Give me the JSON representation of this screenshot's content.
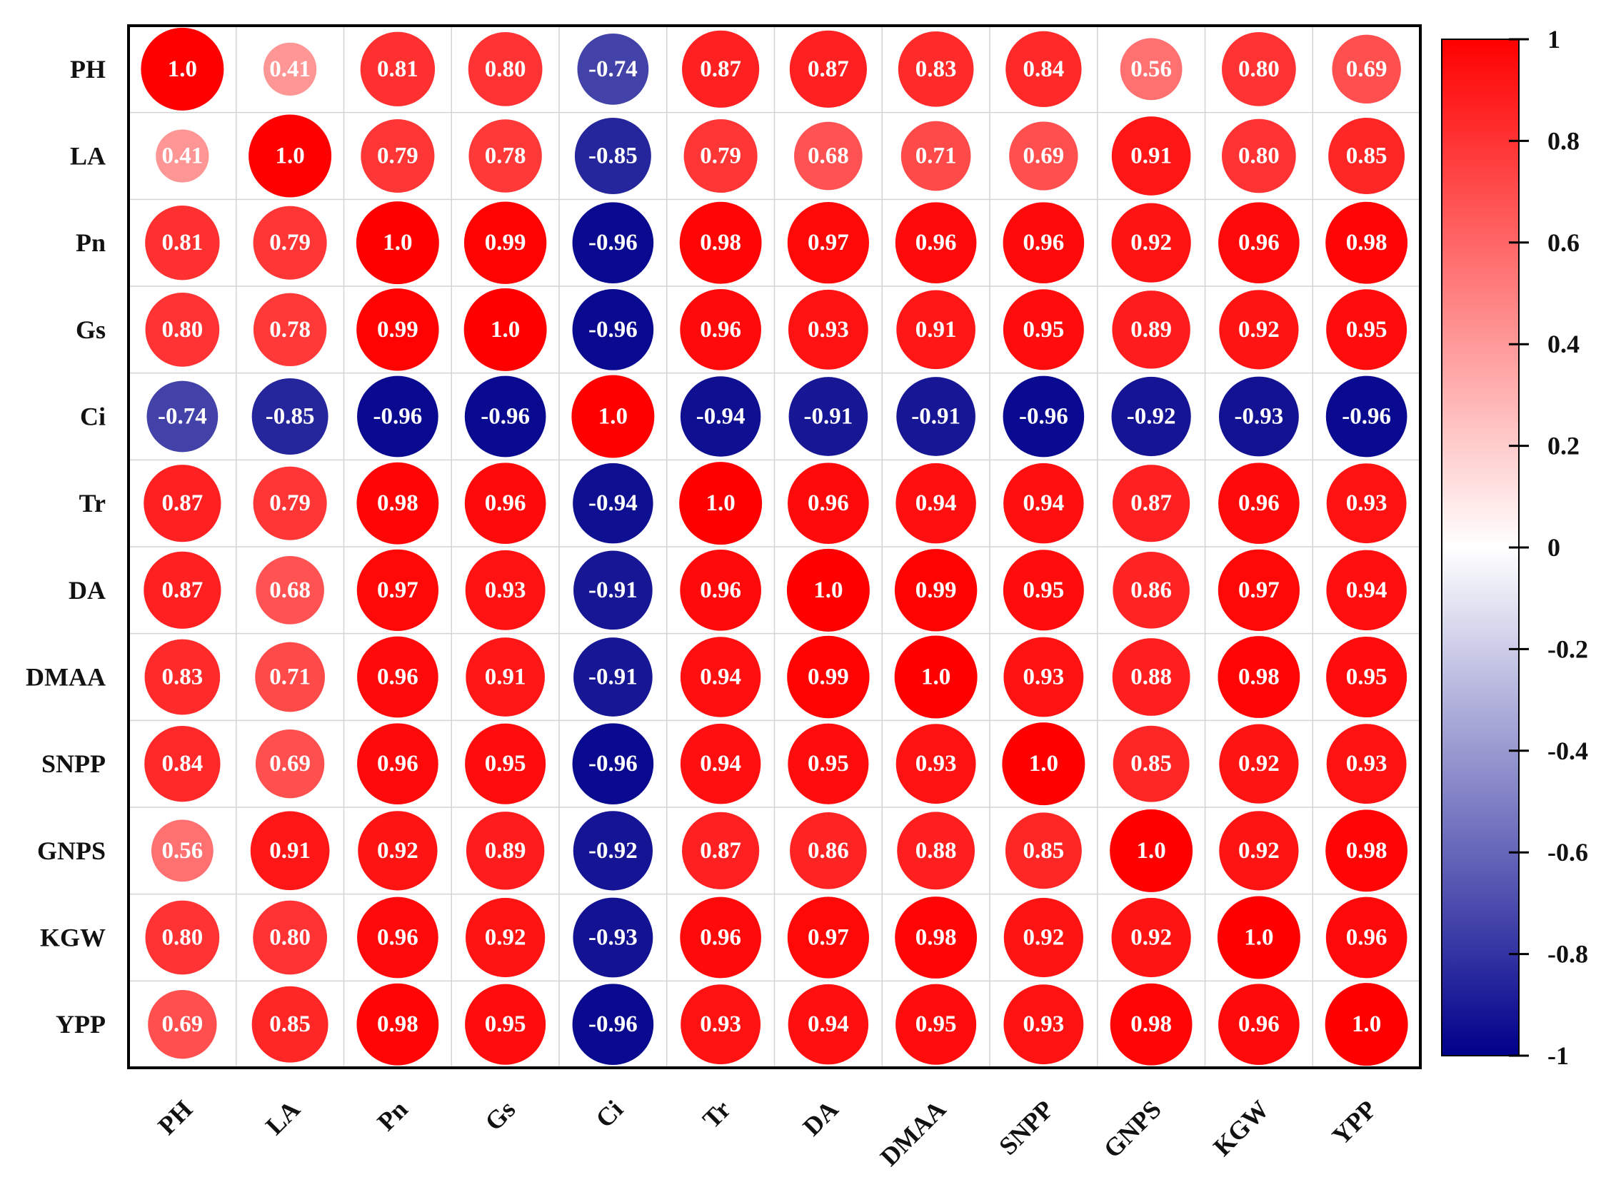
{
  "chart_data": {
    "type": "heatmap",
    "style": "circle-correlation-matrix",
    "title": "",
    "variables": [
      "PH",
      "LA",
      "Pn",
      "Gs",
      "Ci",
      "Tr",
      "DA",
      "DMAA",
      "SNPP",
      "GNPS",
      "KGW",
      "YPP"
    ],
    "cell_labels": [
      [
        "1.0",
        "0.41",
        "0.81",
        "0.80",
        "-0.74",
        "0.87",
        "0.87",
        "0.83",
        "0.84",
        "0.56",
        "0.80",
        "0.69"
      ],
      [
        "0.41",
        "1.0",
        "0.79",
        "0.78",
        "-0.85",
        "0.79",
        "0.68",
        "0.71",
        "0.69",
        "0.91",
        "0.80",
        "0.85"
      ],
      [
        "0.81",
        "0.79",
        "1.0",
        "0.99",
        "-0.96",
        "0.98",
        "0.97",
        "0.96",
        "0.96",
        "0.92",
        "0.96",
        "0.98"
      ],
      [
        "0.80",
        "0.78",
        "0.99",
        "1.0",
        "-0.96",
        "0.96",
        "0.93",
        "0.91",
        "0.95",
        "0.89",
        "0.92",
        "0.95"
      ],
      [
        "-0.74",
        "-0.85",
        "-0.96",
        "-0.96",
        "1.0",
        "-0.94",
        "-0.91",
        "-0.91",
        "-0.96",
        "-0.92",
        "-0.93",
        "-0.96"
      ],
      [
        "0.87",
        "0.79",
        "0.98",
        "0.96",
        "-0.94",
        "1.0",
        "0.96",
        "0.94",
        "0.94",
        "0.87",
        "0.96",
        "0.93"
      ],
      [
        "0.87",
        "0.68",
        "0.97",
        "0.93",
        "-0.91",
        "0.96",
        "1.0",
        "0.99",
        "0.95",
        "0.86",
        "0.97",
        "0.94"
      ],
      [
        "0.83",
        "0.71",
        "0.96",
        "0.91",
        "-0.91",
        "0.94",
        "0.99",
        "1.0",
        "0.93",
        "0.88",
        "0.98",
        "0.95"
      ],
      [
        "0.84",
        "0.69",
        "0.96",
        "0.95",
        "-0.96",
        "0.94",
        "0.95",
        "0.93",
        "1.0",
        "0.85",
        "0.92",
        "0.93"
      ],
      [
        "0.56",
        "0.91",
        "0.92",
        "0.89",
        "-0.92",
        "0.87",
        "0.86",
        "0.88",
        "0.85",
        "1.0",
        "0.92",
        "0.98"
      ],
      [
        "0.80",
        "0.80",
        "0.96",
        "0.92",
        "-0.93",
        "0.96",
        "0.97",
        "0.98",
        "0.92",
        "0.92",
        "1.0",
        "0.96"
      ],
      [
        "0.69",
        "0.85",
        "0.98",
        "0.95",
        "-0.96",
        "0.93",
        "0.94",
        "0.95",
        "0.93",
        "0.98",
        "0.96",
        "1.0"
      ]
    ],
    "colorbar": {
      "range": [
        -1,
        1
      ],
      "ticks": [
        "1",
        "0.8",
        "0.6",
        "0.4",
        "0.2",
        "0",
        "-0.2",
        "-0.4",
        "-0.6",
        "-0.8",
        "-1"
      ],
      "colors": {
        "positive": "#ff0000",
        "zero": "#ffffff",
        "negative": "#00008b"
      }
    },
    "grid": true
  }
}
